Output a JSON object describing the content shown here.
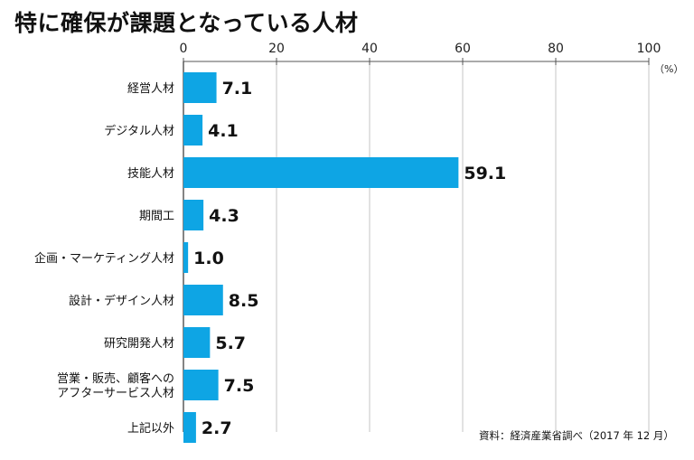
{
  "chart_data": {
    "type": "bar",
    "orientation": "horizontal",
    "title": "特に確保が課題となっている人材",
    "unit_label": "（%）",
    "source": "資料：経済産業省調べ（2017 年 12 月）",
    "xlim": [
      0,
      100
    ],
    "x_ticks": [
      0,
      20,
      40,
      60,
      80,
      100
    ],
    "categories": [
      [
        "経営人材"
      ],
      [
        "デジタル人材"
      ],
      [
        "技能人材"
      ],
      [
        "期間工"
      ],
      [
        "企画・マーケティング人材"
      ],
      [
        "設計・デザイン人材"
      ],
      [
        "研究開発人材"
      ],
      [
        "営業・販売、顧客への",
        "アフターサービス人材"
      ],
      [
        "上記以外"
      ]
    ],
    "values": [
      7.1,
      4.1,
      59.1,
      4.3,
      1.0,
      8.5,
      5.7,
      7.5,
      2.7
    ],
    "value_labels": [
      "7.1",
      "4.1",
      "59.1",
      "4.3",
      "1.0",
      "8.5",
      "5.7",
      "7.5",
      "2.7"
    ],
    "bar_color": "#0ea5e4",
    "grid": true
  }
}
